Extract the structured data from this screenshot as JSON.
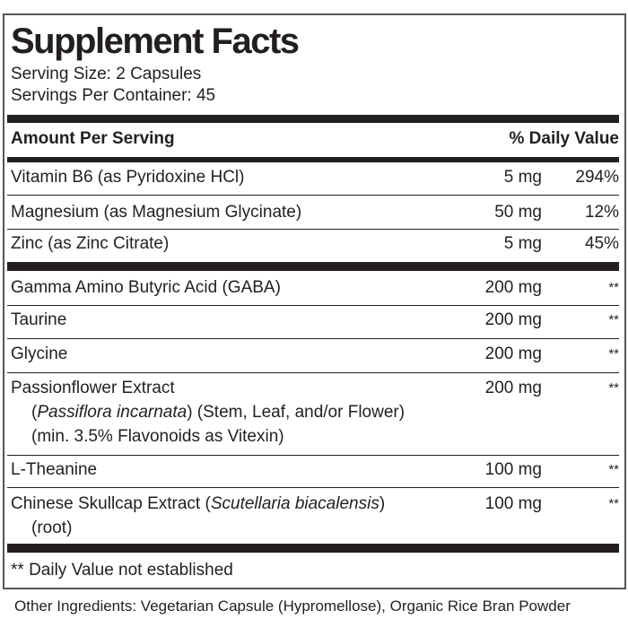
{
  "header": {
    "title": "Supplement Facts",
    "serving_size": "Serving Size: 2 Capsules",
    "servings_per_container": "Servings Per Container: 45"
  },
  "table": {
    "columns": [
      "Amount Per Serving",
      "% Daily Value"
    ],
    "rows": [
      {
        "name": [
          "Vitamin B6 (as Pyridoxine HCl)"
        ],
        "amount": "5 mg",
        "daily_value": "294%"
      },
      {
        "name": [
          "Magnesium (as Magnesium Glycinate)"
        ],
        "amount": "50 mg",
        "daily_value": "12%"
      },
      {
        "name": [
          "Zinc (as Zinc Citrate)"
        ],
        "amount": "5 mg",
        "daily_value": "45%"
      },
      {
        "name": [
          "Gamma Amino Butyric Acid (GABA)"
        ],
        "amount": "200 mg",
        "daily_value": "**"
      },
      {
        "name": [
          "Taurine"
        ],
        "amount": "200 mg",
        "daily_value": "**"
      },
      {
        "name": [
          "Glycine"
        ],
        "amount": "200 mg",
        "daily_value": "**"
      },
      {
        "name": [
          "Passionflower Extract",
          "(",
          "Passiflora incarnata",
          ") (Stem, Leaf, and/or Flower)",
          "(min. 3.5% Flavonoids as Vitexin)"
        ],
        "amount": "200 mg",
        "daily_value": "**"
      },
      {
        "name": [
          "L-Theanine"
        ],
        "amount": "100 mg",
        "daily_value": "**"
      },
      {
        "name": [
          "Chinese Skullcap Extract (",
          "Scutellaria biacalensis",
          ")",
          "(root)"
        ],
        "amount": "100 mg",
        "daily_value": "**"
      }
    ]
  },
  "footnote": "** Daily Value not established",
  "other_ingredients": "Other Ingredients: Vegetarian Capsule (Hypromellose), Organic Rice Bran Powder"
}
